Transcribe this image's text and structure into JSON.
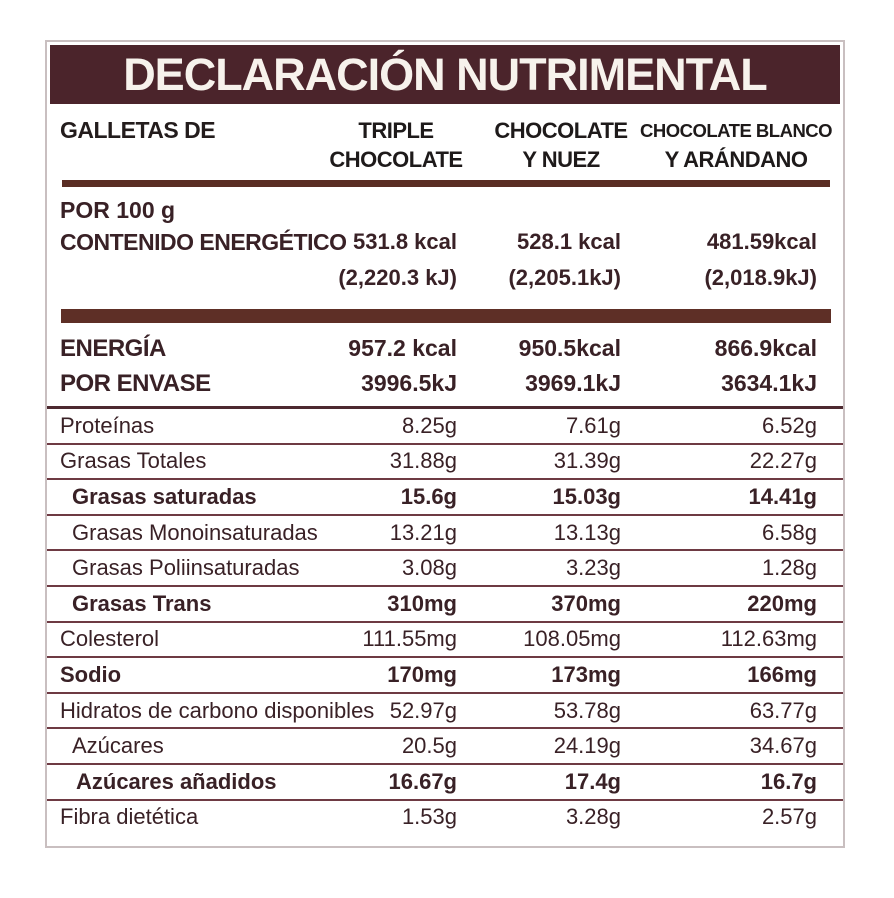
{
  "title": "DECLARACIÓN NUTRIMENTAL",
  "header": {
    "row_label": "GALLETAS DE",
    "columns": [
      {
        "line1": "TRIPLE",
        "line2": "CHOCOLATE"
      },
      {
        "line1": "CHOCOLATE",
        "line2": "Y NUEZ"
      },
      {
        "line1": "CHOCOLATE BLANCO",
        "line2": "Y ARÁNDANO"
      }
    ]
  },
  "per_100g": {
    "heading": "POR 100 g",
    "row_label": "CONTENIDO ENERGÉTICO",
    "kcal": [
      "531.8 kcal",
      "528.1 kcal",
      "481.59kcal"
    ],
    "kj": [
      "(2,220.3 kJ)",
      "(2,205.1kJ)",
      "(2,018.9kJ)"
    ]
  },
  "per_envase": {
    "label_line1": "ENERGÍA",
    "label_line2": "POR ENVASE",
    "kcal": [
      "957.2 kcal",
      "950.5kcal",
      "866.9kcal"
    ],
    "kj": [
      "3996.5kJ",
      "3969.1kJ",
      "3634.1kJ"
    ]
  },
  "nutrients": [
    {
      "label": "Proteínas",
      "values": [
        "8.25g",
        "7.61g",
        "6.52g"
      ]
    },
    {
      "label": "Grasas Totales",
      "values": [
        "31.88g",
        "31.39g",
        "22.27g"
      ]
    },
    {
      "label": "Grasas saturadas",
      "values": [
        "15.6g",
        "15.03g",
        "14.41g"
      ]
    },
    {
      "label": "Grasas Monoinsaturadas",
      "values": [
        "13.21g",
        "13.13g",
        "6.58g"
      ]
    },
    {
      "label": "Grasas Poliinsaturadas",
      "values": [
        "3.08g",
        "3.23g",
        "1.28g"
      ]
    },
    {
      "label": "Grasas Trans",
      "values": [
        "310mg",
        "370mg",
        "220mg"
      ]
    },
    {
      "label": "Colesterol",
      "values": [
        "111.55mg",
        "108.05mg",
        "112.63mg"
      ]
    },
    {
      "label": "Sodio",
      "values": [
        "170mg",
        "173mg",
        "166mg"
      ]
    },
    {
      "label": "Hidratos de carbono disponibles",
      "values": [
        "52.97g",
        "53.78g",
        "63.77g"
      ]
    },
    {
      "label": "Azúcares",
      "values": [
        "20.5g",
        "24.19g",
        "34.67g"
      ]
    },
    {
      "label": "Azúcares añadidos",
      "values": [
        "16.67g",
        "17.4g",
        "16.7g"
      ]
    },
    {
      "label": "Fibra dietética",
      "values": [
        "1.53g",
        "3.28g",
        "2.57g"
      ]
    }
  ],
  "colors": {
    "brand_maroon": "#4b242b",
    "bar_brown": "#5e2f26",
    "divider_maroon": "#6e3a43",
    "text_dark": "#392126",
    "header_black": "#1e1a1a",
    "border_gray": "#c9bfc0"
  }
}
